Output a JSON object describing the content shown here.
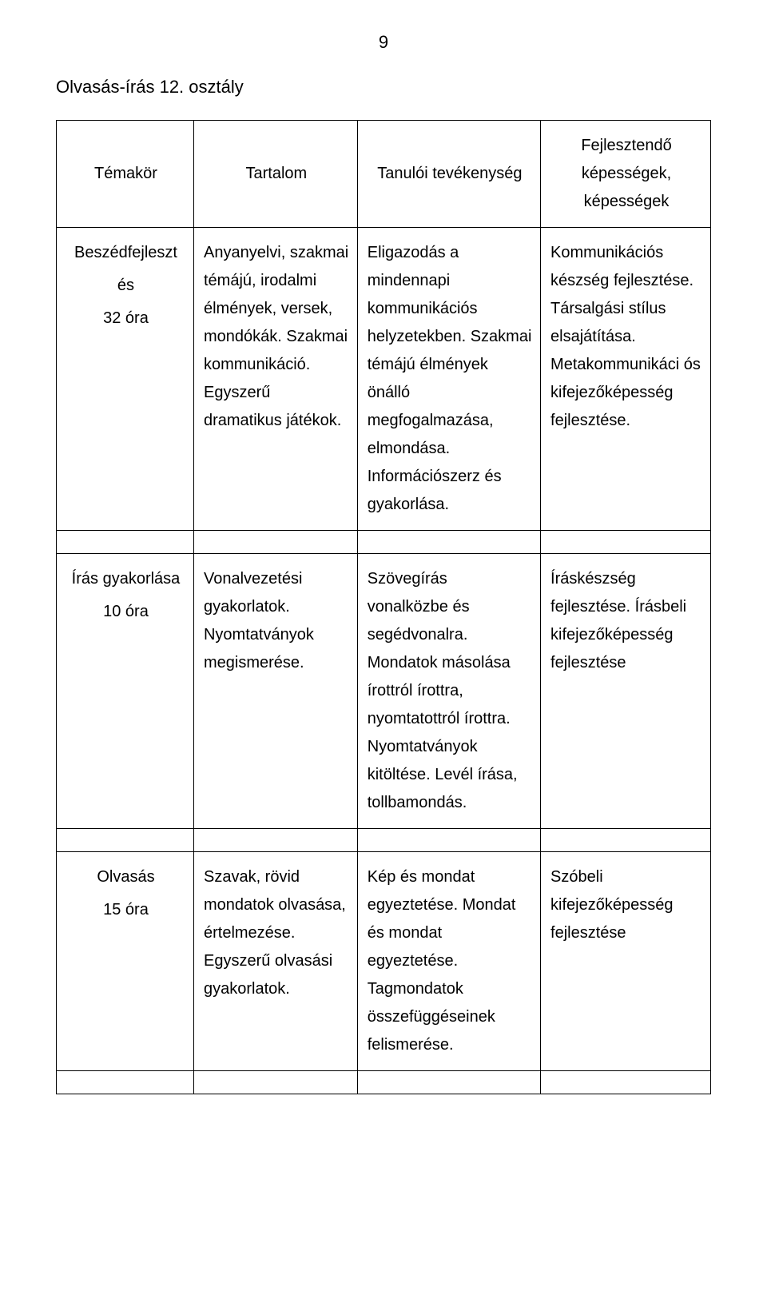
{
  "page_number": "9",
  "title": "Olvasás-írás 12. osztály",
  "columns": {
    "c1": "Témakör",
    "c2": "Tartalom",
    "c3": "Tanulói tevékenység",
    "c4": "Fejlesztendő képességek, képességek"
  },
  "rows": [
    {
      "label_line1": "Beszédfejleszt",
      "label_line2": "és",
      "label_line3": "32 óra",
      "content": "Anyanyelvi, szakmai témájú, irodalmi élmények, versek, mondókák. Szakmai kommunikáció. Egyszerű dramatikus játékok.",
      "activity": "Eligazodás a mindennapi kommunikációs helyzetekben. Szakmai témájú élmények önálló megfogalmazása, elmondása. Információszerz és gyakorlása.",
      "skills": "Kommunikációs készség fejlesztése. Társalgási stílus elsajátítása. Metakommunikáci ós kifejezőképesség fejlesztése."
    },
    {
      "label_line1": "Írás gyakorlása",
      "label_line2": "10 óra",
      "label_line3": "",
      "content": "Vonalvezetési gyakorlatok. Nyomtatványok megismerése.",
      "activity": "Szövegírás vonalközbe és segédvonalra. Mondatok másolása írottról írottra, nyomtatottról írottra. Nyomtatványok kitöltése. Levél írása, tollbamondás.",
      "skills": "Íráskészség fejlesztése. Írásbeli kifejezőképesség fejlesztése"
    },
    {
      "label_line1": "Olvasás",
      "label_line2": "15 óra",
      "label_line3": "",
      "content": "Szavak, rövid mondatok olvasása, értelmezése. Egyszerű olvasási gyakorlatok.",
      "activity": "Kép és mondat egyeztetése. Mondat és mondat egyeztetése. Tagmondatok összefüggéseinek felismerése.",
      "skills": "Szóbeli kifejezőképesség fejlesztése"
    }
  ],
  "colors": {
    "text": "#000000",
    "background": "#ffffff",
    "border": "#000000"
  }
}
